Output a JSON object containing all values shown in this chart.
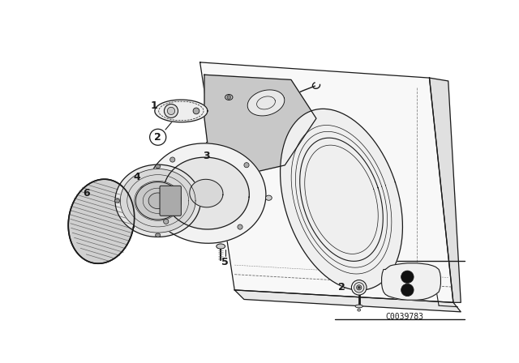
{
  "background_color": "#ffffff",
  "line_color": "#1a1a1a",
  "catalog_code": "C0039783",
  "fig_width": 6.4,
  "fig_height": 4.48,
  "dpi": 100
}
